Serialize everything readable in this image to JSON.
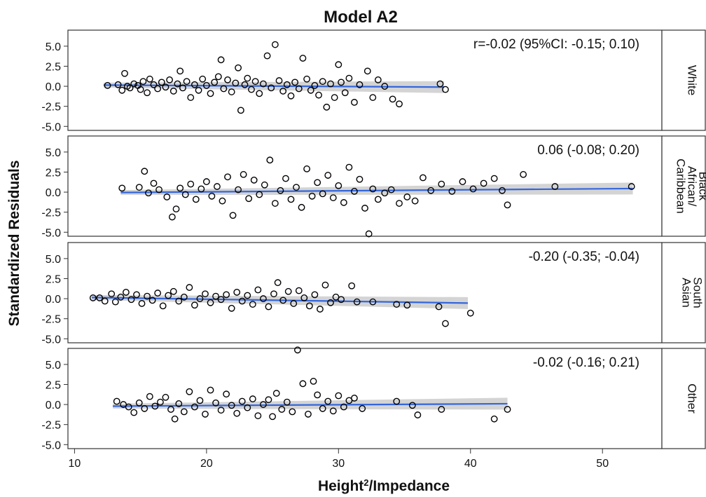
{
  "chart_data": {
    "type": "scatter",
    "title": "Model A2",
    "xlabel": "Height²/Impedance",
    "xlabel_main": "Height",
    "xlabel_sup": "2",
    "xlabel_rest": "/Impedance",
    "ylabel": "Standardized Residuals",
    "xlim": [
      9.5,
      54.5
    ],
    "ylim": [
      -5.5,
      7.0
    ],
    "xticks": [
      10,
      20,
      30,
      40,
      50
    ],
    "yticks": [
      -5.0,
      -2.5,
      0.0,
      2.5,
      5.0
    ],
    "ytick_labels": [
      "-5.0",
      "-2.5",
      "0.0",
      "2.5",
      "5.0"
    ],
    "xtick_labels": [
      "10",
      "20",
      "30",
      "40",
      "50"
    ],
    "grid": false,
    "colors": {
      "points": "#000000",
      "fit_line": "#3366dd",
      "confidence_band": "#bdbdbd"
    },
    "panels": [
      {
        "strip_label": "White",
        "annotation": "r=-0.02 (95%CI: -0.15; 0.10)",
        "fit": {
          "x": [
            12.2,
            38.0
          ],
          "y": [
            0.15,
            -0.1
          ]
        },
        "points": [
          [
            12.5,
            0.1
          ],
          [
            13.3,
            0.2
          ],
          [
            13.6,
            -0.5
          ],
          [
            13.8,
            1.6
          ],
          [
            14.0,
            0.0
          ],
          [
            14.2,
            -0.2
          ],
          [
            14.5,
            0.3
          ],
          [
            14.8,
            0.1
          ],
          [
            15.0,
            -0.4
          ],
          [
            15.2,
            0.6
          ],
          [
            15.5,
            -0.8
          ],
          [
            15.7,
            0.9
          ],
          [
            16.0,
            0.2
          ],
          [
            16.3,
            -0.3
          ],
          [
            16.6,
            0.5
          ],
          [
            16.9,
            -0.1
          ],
          [
            17.2,
            0.8
          ],
          [
            17.5,
            -0.6
          ],
          [
            17.8,
            0.3
          ],
          [
            18.0,
            1.9
          ],
          [
            18.2,
            -0.2
          ],
          [
            18.5,
            0.6
          ],
          [
            18.8,
            -1.4
          ],
          [
            19.1,
            0.2
          ],
          [
            19.4,
            -0.5
          ],
          [
            19.7,
            0.9
          ],
          [
            20.0,
            0.1
          ],
          [
            20.3,
            -0.9
          ],
          [
            20.6,
            0.5
          ],
          [
            20.9,
            1.2
          ],
          [
            21.1,
            3.3
          ],
          [
            21.3,
            -0.3
          ],
          [
            21.6,
            0.8
          ],
          [
            21.9,
            -0.7
          ],
          [
            22.2,
            0.4
          ],
          [
            22.4,
            2.3
          ],
          [
            22.6,
            -3.0
          ],
          [
            22.9,
            0.2
          ],
          [
            23.1,
            1.0
          ],
          [
            23.4,
            -0.4
          ],
          [
            23.7,
            0.6
          ],
          [
            24.0,
            -0.9
          ],
          [
            24.3,
            0.3
          ],
          [
            24.6,
            3.8
          ],
          [
            24.9,
            -0.2
          ],
          [
            25.2,
            5.2
          ],
          [
            25.5,
            0.7
          ],
          [
            25.8,
            -0.6
          ],
          [
            26.1,
            0.2
          ],
          [
            26.4,
            -1.2
          ],
          [
            26.7,
            0.5
          ],
          [
            27.0,
            -0.3
          ],
          [
            27.3,
            3.5
          ],
          [
            27.6,
            0.9
          ],
          [
            27.9,
            -0.5
          ],
          [
            28.2,
            0.1
          ],
          [
            28.5,
            -1.1
          ],
          [
            28.8,
            0.6
          ],
          [
            29.1,
            -2.6
          ],
          [
            29.4,
            0.3
          ],
          [
            29.7,
            -1.4
          ],
          [
            30.0,
            2.7
          ],
          [
            30.2,
            0.5
          ],
          [
            30.5,
            -0.8
          ],
          [
            30.8,
            1.0
          ],
          [
            31.2,
            -2.0
          ],
          [
            31.6,
            0.2
          ],
          [
            32.2,
            1.9
          ],
          [
            32.6,
            -1.4
          ],
          [
            33.0,
            0.8
          ],
          [
            33.5,
            0.0
          ],
          [
            34.1,
            -1.6
          ],
          [
            34.6,
            -2.2
          ],
          [
            37.7,
            0.3
          ],
          [
            38.1,
            -0.4
          ]
        ]
      },
      {
        "strip_label": "Black African/ Caribbean",
        "strip_lines": [
          "Black",
          "African/",
          "Caribbean"
        ],
        "annotation": "0.06 (-0.08; 0.20)",
        "fit": {
          "x": [
            13.5,
            52.3
          ],
          "y": [
            -0.05,
            0.45
          ]
        },
        "points": [
          [
            13.6,
            0.5
          ],
          [
            14.9,
            0.6
          ],
          [
            15.3,
            2.6
          ],
          [
            15.6,
            -0.1
          ],
          [
            16.0,
            1.1
          ],
          [
            16.4,
            0.3
          ],
          [
            17.0,
            -0.6
          ],
          [
            17.4,
            -3.1
          ],
          [
            17.7,
            -2.1
          ],
          [
            18.0,
            0.5
          ],
          [
            18.4,
            -0.3
          ],
          [
            18.8,
            1.0
          ],
          [
            19.2,
            -0.9
          ],
          [
            19.6,
            0.4
          ],
          [
            20.0,
            1.3
          ],
          [
            20.4,
            -0.5
          ],
          [
            20.8,
            0.7
          ],
          [
            21.2,
            -1.1
          ],
          [
            21.6,
            1.9
          ],
          [
            22.0,
            -2.9
          ],
          [
            22.4,
            0.3
          ],
          [
            22.8,
            2.2
          ],
          [
            23.2,
            -0.8
          ],
          [
            23.6,
            1.5
          ],
          [
            24.0,
            -0.3
          ],
          [
            24.4,
            0.9
          ],
          [
            24.8,
            4.0
          ],
          [
            25.2,
            -1.4
          ],
          [
            25.6,
            0.2
          ],
          [
            26.0,
            1.7
          ],
          [
            26.4,
            -0.9
          ],
          [
            26.8,
            0.6
          ],
          [
            27.2,
            -1.9
          ],
          [
            27.6,
            2.9
          ],
          [
            28.0,
            -0.5
          ],
          [
            28.4,
            1.2
          ],
          [
            28.8,
            -0.2
          ],
          [
            29.2,
            2.1
          ],
          [
            29.6,
            -0.7
          ],
          [
            30.0,
            0.8
          ],
          [
            30.4,
            -1.3
          ],
          [
            30.8,
            3.1
          ],
          [
            31.2,
            0.1
          ],
          [
            31.6,
            1.6
          ],
          [
            32.0,
            -2.0
          ],
          [
            32.3,
            -5.2
          ],
          [
            32.6,
            0.4
          ],
          [
            33.0,
            -0.9
          ],
          [
            33.5,
            -0.1
          ],
          [
            34.0,
            0.3
          ],
          [
            34.6,
            -1.4
          ],
          [
            35.2,
            -0.6
          ],
          [
            35.8,
            -1.1
          ],
          [
            36.4,
            1.8
          ],
          [
            37.0,
            0.2
          ],
          [
            37.8,
            1.0
          ],
          [
            38.6,
            0.1
          ],
          [
            39.4,
            1.3
          ],
          [
            40.2,
            0.4
          ],
          [
            41.0,
            1.1
          ],
          [
            41.8,
            1.7
          ],
          [
            42.4,
            0.2
          ],
          [
            42.8,
            -1.6
          ],
          [
            44.0,
            2.2
          ],
          [
            46.4,
            0.7
          ],
          [
            52.2,
            0.7
          ]
        ]
      },
      {
        "strip_label": "South Asian",
        "strip_lines": [
          "South",
          "Asian"
        ],
        "annotation": "-0.20 (-0.35; -0.04)",
        "fit": {
          "x": [
            11.3,
            39.8
          ],
          "y": [
            0.15,
            -0.55
          ]
        },
        "points": [
          [
            11.4,
            0.1
          ],
          [
            11.9,
            0.1
          ],
          [
            12.3,
            -0.3
          ],
          [
            12.8,
            0.6
          ],
          [
            13.1,
            -0.4
          ],
          [
            13.5,
            0.2
          ],
          [
            13.9,
            0.8
          ],
          [
            14.3,
            -0.1
          ],
          [
            14.7,
            0.5
          ],
          [
            15.1,
            -0.6
          ],
          [
            15.5,
            0.3
          ],
          [
            15.9,
            -0.2
          ],
          [
            16.3,
            0.7
          ],
          [
            16.7,
            -0.9
          ],
          [
            17.1,
            0.4
          ],
          [
            17.5,
            0.9
          ],
          [
            17.9,
            -0.3
          ],
          [
            18.3,
            0.2
          ],
          [
            18.7,
            1.4
          ],
          [
            19.1,
            -0.8
          ],
          [
            19.5,
            0.0
          ],
          [
            19.9,
            0.6
          ],
          [
            20.3,
            -0.5
          ],
          [
            20.7,
            0.3
          ],
          [
            21.1,
            -0.1
          ],
          [
            21.5,
            0.5
          ],
          [
            21.9,
            -1.2
          ],
          [
            22.3,
            0.8
          ],
          [
            22.7,
            -0.3
          ],
          [
            23.1,
            0.4
          ],
          [
            23.5,
            -0.7
          ],
          [
            23.9,
            1.1
          ],
          [
            24.3,
            0.0
          ],
          [
            24.7,
            -1.0
          ],
          [
            25.1,
            0.6
          ],
          [
            25.4,
            2.0
          ],
          [
            25.8,
            -0.2
          ],
          [
            26.2,
            0.9
          ],
          [
            26.6,
            -0.6
          ],
          [
            27.0,
            1.0
          ],
          [
            27.4,
            0.1
          ],
          [
            27.8,
            -0.9
          ],
          [
            28.2,
            0.5
          ],
          [
            28.6,
            -1.3
          ],
          [
            29.0,
            1.7
          ],
          [
            29.4,
            -0.5
          ],
          [
            29.8,
            0.2
          ],
          [
            30.2,
            -0.1
          ],
          [
            31.0,
            1.6
          ],
          [
            31.4,
            -0.4
          ],
          [
            32.6,
            -0.4
          ],
          [
            34.4,
            -0.7
          ],
          [
            35.2,
            -0.8
          ],
          [
            37.6,
            -1.0
          ],
          [
            38.1,
            -3.1
          ],
          [
            40.0,
            -1.8
          ]
        ]
      },
      {
        "strip_label": "Other",
        "annotation": "-0.02 (-0.16; 0.21)",
        "fit": {
          "x": [
            12.9,
            42.8
          ],
          "y": [
            -0.2,
            0.1
          ]
        },
        "points": [
          [
            13.2,
            0.4
          ],
          [
            13.7,
            0.0
          ],
          [
            14.1,
            -0.3
          ],
          [
            14.5,
            -1.0
          ],
          [
            14.9,
            0.2
          ],
          [
            15.3,
            -0.5
          ],
          [
            15.7,
            1.0
          ],
          [
            16.1,
            -0.2
          ],
          [
            16.5,
            0.3
          ],
          [
            16.9,
            0.9
          ],
          [
            17.3,
            -0.6
          ],
          [
            17.6,
            -1.8
          ],
          [
            17.9,
            0.1
          ],
          [
            18.3,
            -0.9
          ],
          [
            18.7,
            1.6
          ],
          [
            19.1,
            -0.3
          ],
          [
            19.5,
            0.5
          ],
          [
            19.9,
            -1.2
          ],
          [
            20.3,
            1.8
          ],
          [
            20.7,
            0.2
          ],
          [
            21.1,
            -0.7
          ],
          [
            21.5,
            1.3
          ],
          [
            21.9,
            -0.1
          ],
          [
            22.3,
            -1.1
          ],
          [
            22.7,
            0.4
          ],
          [
            23.1,
            -0.4
          ],
          [
            23.5,
            0.7
          ],
          [
            23.9,
            -1.4
          ],
          [
            24.3,
            0.0
          ],
          [
            24.7,
            0.6
          ],
          [
            25.0,
            -1.5
          ],
          [
            25.3,
            1.4
          ],
          [
            25.7,
            -0.6
          ],
          [
            26.1,
            0.3
          ],
          [
            26.5,
            -0.9
          ],
          [
            26.9,
            6.8
          ],
          [
            27.3,
            2.6
          ],
          [
            27.7,
            -1.2
          ],
          [
            28.1,
            2.9
          ],
          [
            28.4,
            1.2
          ],
          [
            28.8,
            -0.5
          ],
          [
            29.2,
            0.4
          ],
          [
            29.6,
            -0.8
          ],
          [
            30.0,
            1.1
          ],
          [
            30.4,
            -0.3
          ],
          [
            30.8,
            0.5
          ],
          [
            31.2,
            0.8
          ],
          [
            31.8,
            -0.5
          ],
          [
            34.4,
            0.4
          ],
          [
            35.6,
            -0.1
          ],
          [
            36.0,
            -1.3
          ],
          [
            37.8,
            -0.6
          ],
          [
            41.8,
            -1.8
          ],
          [
            42.8,
            -0.6
          ]
        ]
      }
    ]
  }
}
